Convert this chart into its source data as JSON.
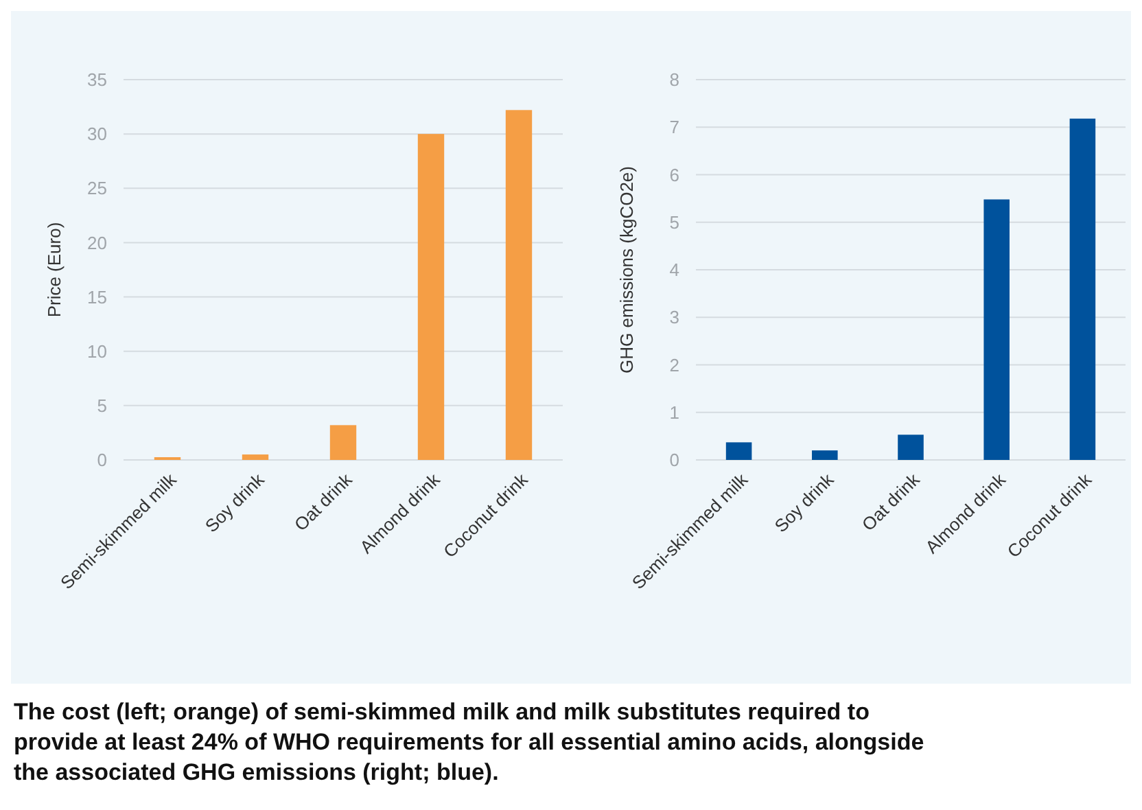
{
  "chart_data": [
    {
      "type": "bar",
      "ylabel": "Price (Euro)",
      "categories": [
        "Semi-skimmed milk",
        "Soy drink",
        "Oat drink",
        "Almond drink",
        "Coconut drink"
      ],
      "values": [
        0.25,
        0.5,
        3.2,
        30,
        32.2
      ],
      "color": "#f59e45",
      "ylim": [
        0,
        35
      ],
      "yticks": [
        0,
        5,
        10,
        15,
        20,
        25,
        30,
        35
      ],
      "grid": "y",
      "annotations": [
        "The cost (left; orange) of semi-skimmed milk and milk substitutes required to provide at least 24% of WHO requirements for all essential amino acids, alongside the associated GHG emissions (right; blue)."
      ]
    },
    {
      "type": "bar",
      "ylabel": "GHG emissions (kgCO2e)",
      "categories": [
        "Semi-skimmed milk",
        "Soy drink",
        "Oat drink",
        "Almond drink",
        "Coconut drink"
      ],
      "values": [
        0.37,
        0.2,
        0.53,
        5.48,
        7.18
      ],
      "color": "#00529c",
      "ylim": [
        0,
        8
      ],
      "yticks": [
        0,
        1,
        2,
        3,
        4,
        5,
        6,
        7,
        8
      ],
      "grid": "y"
    }
  ]
}
